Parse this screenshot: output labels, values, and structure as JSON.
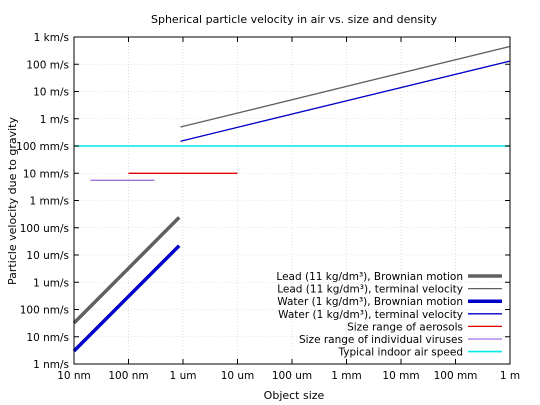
{
  "chart_data": {
    "type": "line",
    "title": "Spherical particle velocity in air vs. size and density",
    "xlabel": "Object size",
    "ylabel": "Particle velocity due to gravity",
    "x_scale": "log",
    "y_scale": "log",
    "xlim_m": [
      1e-08,
      1
    ],
    "ylim_m_per_s": [
      1e-09,
      1000
    ],
    "x_ticks": [
      {
        "value": 1e-08,
        "label": "10 nm"
      },
      {
        "value": 1e-07,
        "label": "100 nm"
      },
      {
        "value": 1e-06,
        "label": "1 um"
      },
      {
        "value": 1e-05,
        "label": "10 um"
      },
      {
        "value": 0.0001,
        "label": "100 um"
      },
      {
        "value": 0.001,
        "label": "1 mm"
      },
      {
        "value": 0.01,
        "label": "10 mm"
      },
      {
        "value": 0.1,
        "label": "100 mm"
      },
      {
        "value": 1,
        "label": "1  m"
      }
    ],
    "y_ticks": [
      {
        "value": 1e-09,
        "label": "1 nm/s"
      },
      {
        "value": 1e-08,
        "label": "10 nm/s"
      },
      {
        "value": 1e-07,
        "label": "100 nm/s"
      },
      {
        "value": 1e-06,
        "label": "1 um/s"
      },
      {
        "value": 1e-05,
        "label": "10 um/s"
      },
      {
        "value": 0.0001,
        "label": "100 um/s"
      },
      {
        "value": 0.001,
        "label": "1 mm/s"
      },
      {
        "value": 0.01,
        "label": "10 mm/s"
      },
      {
        "value": 0.1,
        "label": "100 mm/s"
      },
      {
        "value": 1,
        "label": "1   m/s"
      },
      {
        "value": 10,
        "label": "10   m/s"
      },
      {
        "value": 100,
        "label": "100   m/s"
      },
      {
        "value": 1000,
        "label": "1 km/s"
      }
    ],
    "grid": true,
    "legend_position": "bottom-right",
    "series": [
      {
        "name": "Lead (11 kg/dm³), Brownian motion",
        "color": "#606060",
        "width": 3.5,
        "points": [
          [
            1e-08,
            3.2e-08
          ],
          [
            8.5e-07,
            0.00024
          ]
        ]
      },
      {
        "name": "Lead (11 kg/dm³), terminal velocity",
        "color": "#606060",
        "width": 1.3,
        "points": [
          [
            9e-07,
            0.5
          ],
          [
            1,
            450
          ]
        ]
      },
      {
        "name": "Water (1 kg/dm³), Brownian motion",
        "color": "#0000c8",
        "width": 3.5,
        "points": [
          [
            1e-08,
            3e-09
          ],
          [
            8.5e-07,
            2.2e-05
          ]
        ]
      },
      {
        "name": "Water (1 kg/dm³), terminal velocity",
        "color": "#0000c8",
        "width": 1.3,
        "points": [
          [
            9e-07,
            0.15
          ],
          [
            1,
            130
          ]
        ]
      },
      {
        "name": "Size range of aerosols",
        "color": "#e00000",
        "width": 1.3,
        "points": [
          [
            1e-07,
            0.01
          ],
          [
            1e-05,
            0.01
          ]
        ]
      },
      {
        "name": "Size range of individual viruses",
        "color": "#a070e0",
        "width": 1.3,
        "points": [
          [
            2e-08,
            0.0055
          ],
          [
            3e-07,
            0.0055
          ]
        ]
      },
      {
        "name": "Typical indoor air speed",
        "color": "#00e8e8",
        "width": 1.6,
        "points": [
          [
            1e-08,
            0.1
          ],
          [
            1,
            0.1
          ]
        ]
      }
    ]
  }
}
